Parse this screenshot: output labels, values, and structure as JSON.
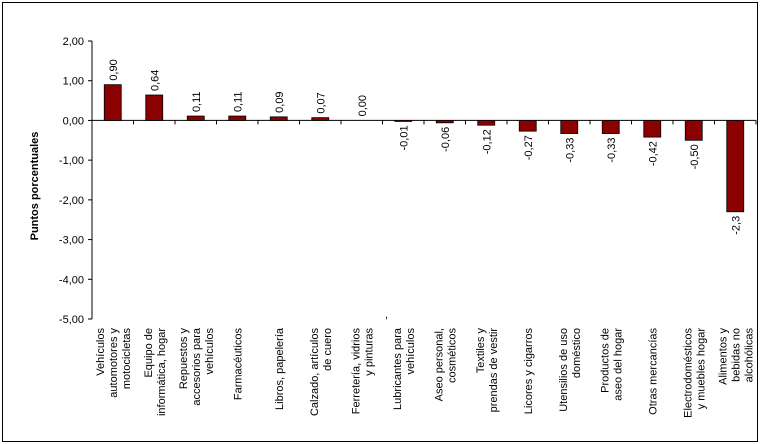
{
  "chart_data": {
    "type": "bar",
    "title": "",
    "xlabel": "",
    "ylabel": "Puntos porcentuales",
    "ylim": [
      -5,
      2
    ],
    "yticks": [
      "2,00",
      "1,00",
      "0,00",
      "-1,00",
      "-2,00",
      "-3,00",
      "-4,00",
      "-5,00"
    ],
    "bar_color": "#8B0000",
    "grid": false,
    "categories": [
      "Vehículos automotores y motocicletas",
      "Equipo de informática, hogar",
      "Repuestos y accesorios para vehículos",
      "Farmacéuticos",
      "Libros, papelería",
      "Calzado, artículos de cuero",
      "Ferretería, vidrios y pinturas",
      "Lubricantes para vehículos",
      "Aseo personal, cosméticos",
      "Textiles y prendas de vestir",
      "Licores y cigarros",
      "Utensilios de uso doméstico",
      "Productos de aseo del hogar",
      "Otras mercancías",
      "Electrodomésticos y muebles hogar",
      "Alimentos y bebidas no alcohólicas"
    ],
    "category_lines": [
      [
        "Vehículos",
        "automotores y",
        "motocicletas"
      ],
      [
        "Equipo de",
        "informática, hogar"
      ],
      [
        "Repuestos y",
        "accesorios para",
        "vehículos"
      ],
      [
        "Farmacéuticos"
      ],
      [
        "Libros, papelería"
      ],
      [
        "Calzado, artículos",
        "de cuero"
      ],
      [
        "Ferretería, vidrios",
        "y pinturas"
      ],
      [
        "Lubricantes para",
        "vehículos"
      ],
      [
        "Aseo personal,",
        "cosméticos"
      ],
      [
        "Textiles y",
        "prendas de vestir"
      ],
      [
        "Licores y cigarros"
      ],
      [
        "Utensilios de uso",
        "doméstico"
      ],
      [
        "Productos de",
        "aseo del hogar"
      ],
      [
        "Otras mercancías"
      ],
      [
        "Electrodomésticos",
        "y muebles hogar"
      ],
      [
        "Alimentos y",
        "bebidas no",
        "alcohólicas"
      ]
    ],
    "values": [
      0.9,
      0.64,
      0.11,
      0.11,
      0.09,
      0.07,
      0.0,
      -0.01,
      -0.06,
      -0.12,
      -0.27,
      -0.33,
      -0.33,
      -0.42,
      -0.5,
      -2.3
    ],
    "data_labels": [
      "0,90",
      "0,64",
      "0,11",
      "0,11",
      "0,09",
      "0,07",
      "0,00",
      "-0,01",
      "-0,06",
      "-0,12",
      "-0,27",
      "-0,33",
      "-0,33",
      "-0,42",
      "-0,50",
      "-2,3"
    ],
    "stray_mark": ","
  }
}
